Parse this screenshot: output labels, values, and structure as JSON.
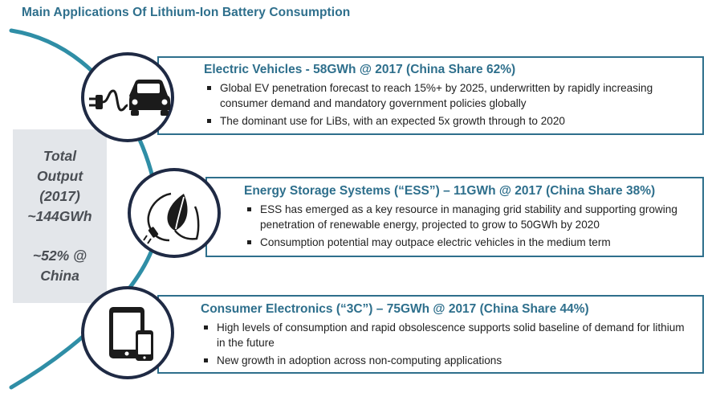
{
  "title": "Main Applications Of Lithium-Ion Battery Consumption",
  "summary": {
    "line1": "Total",
    "line2": "Output",
    "line3": "(2017)",
    "line4": "~144GWh",
    "line5": "~52% @",
    "line6": "China"
  },
  "sections": [
    {
      "title": "Electric Vehicles - 58GWh @ 2017 (China Share 62%)",
      "icon": "electric-car-plug-icon",
      "bullets": [
        "Global EV penetration forecast to reach 15%+ by 2025, underwritten by rapidly increasing consumer demand and mandatory government policies globally",
        "The dominant use for LiBs, with an expected 5x growth through to 2020"
      ]
    },
    {
      "title": "Energy Storage Systems (“ESS”) – 11GWh @ 2017 (China Share 38%)",
      "icon": "leaf-plug-icon",
      "bullets": [
        "ESS has emerged as a key resource in managing grid stability and supporting growing penetration of renewable energy, projected to grow to 50GWh by 2020",
        "Consumption potential may outpace electric vehicles in the medium term"
      ]
    },
    {
      "title": "Consumer Electronics (“3C”) – 75GWh @ 2017 (China Share 44%)",
      "icon": "tablet-phone-icon",
      "bullets": [
        "High levels of consumption and rapid obsolescence supports solid baseline of demand for lithium in the future",
        "New growth in adoption across non-computing applications"
      ]
    }
  ],
  "colors": {
    "accent": "#2e6f8c",
    "arc": "#2f8ea6",
    "summary_bg": "#e3e6ea",
    "icon_outline": "#1f2a44"
  }
}
